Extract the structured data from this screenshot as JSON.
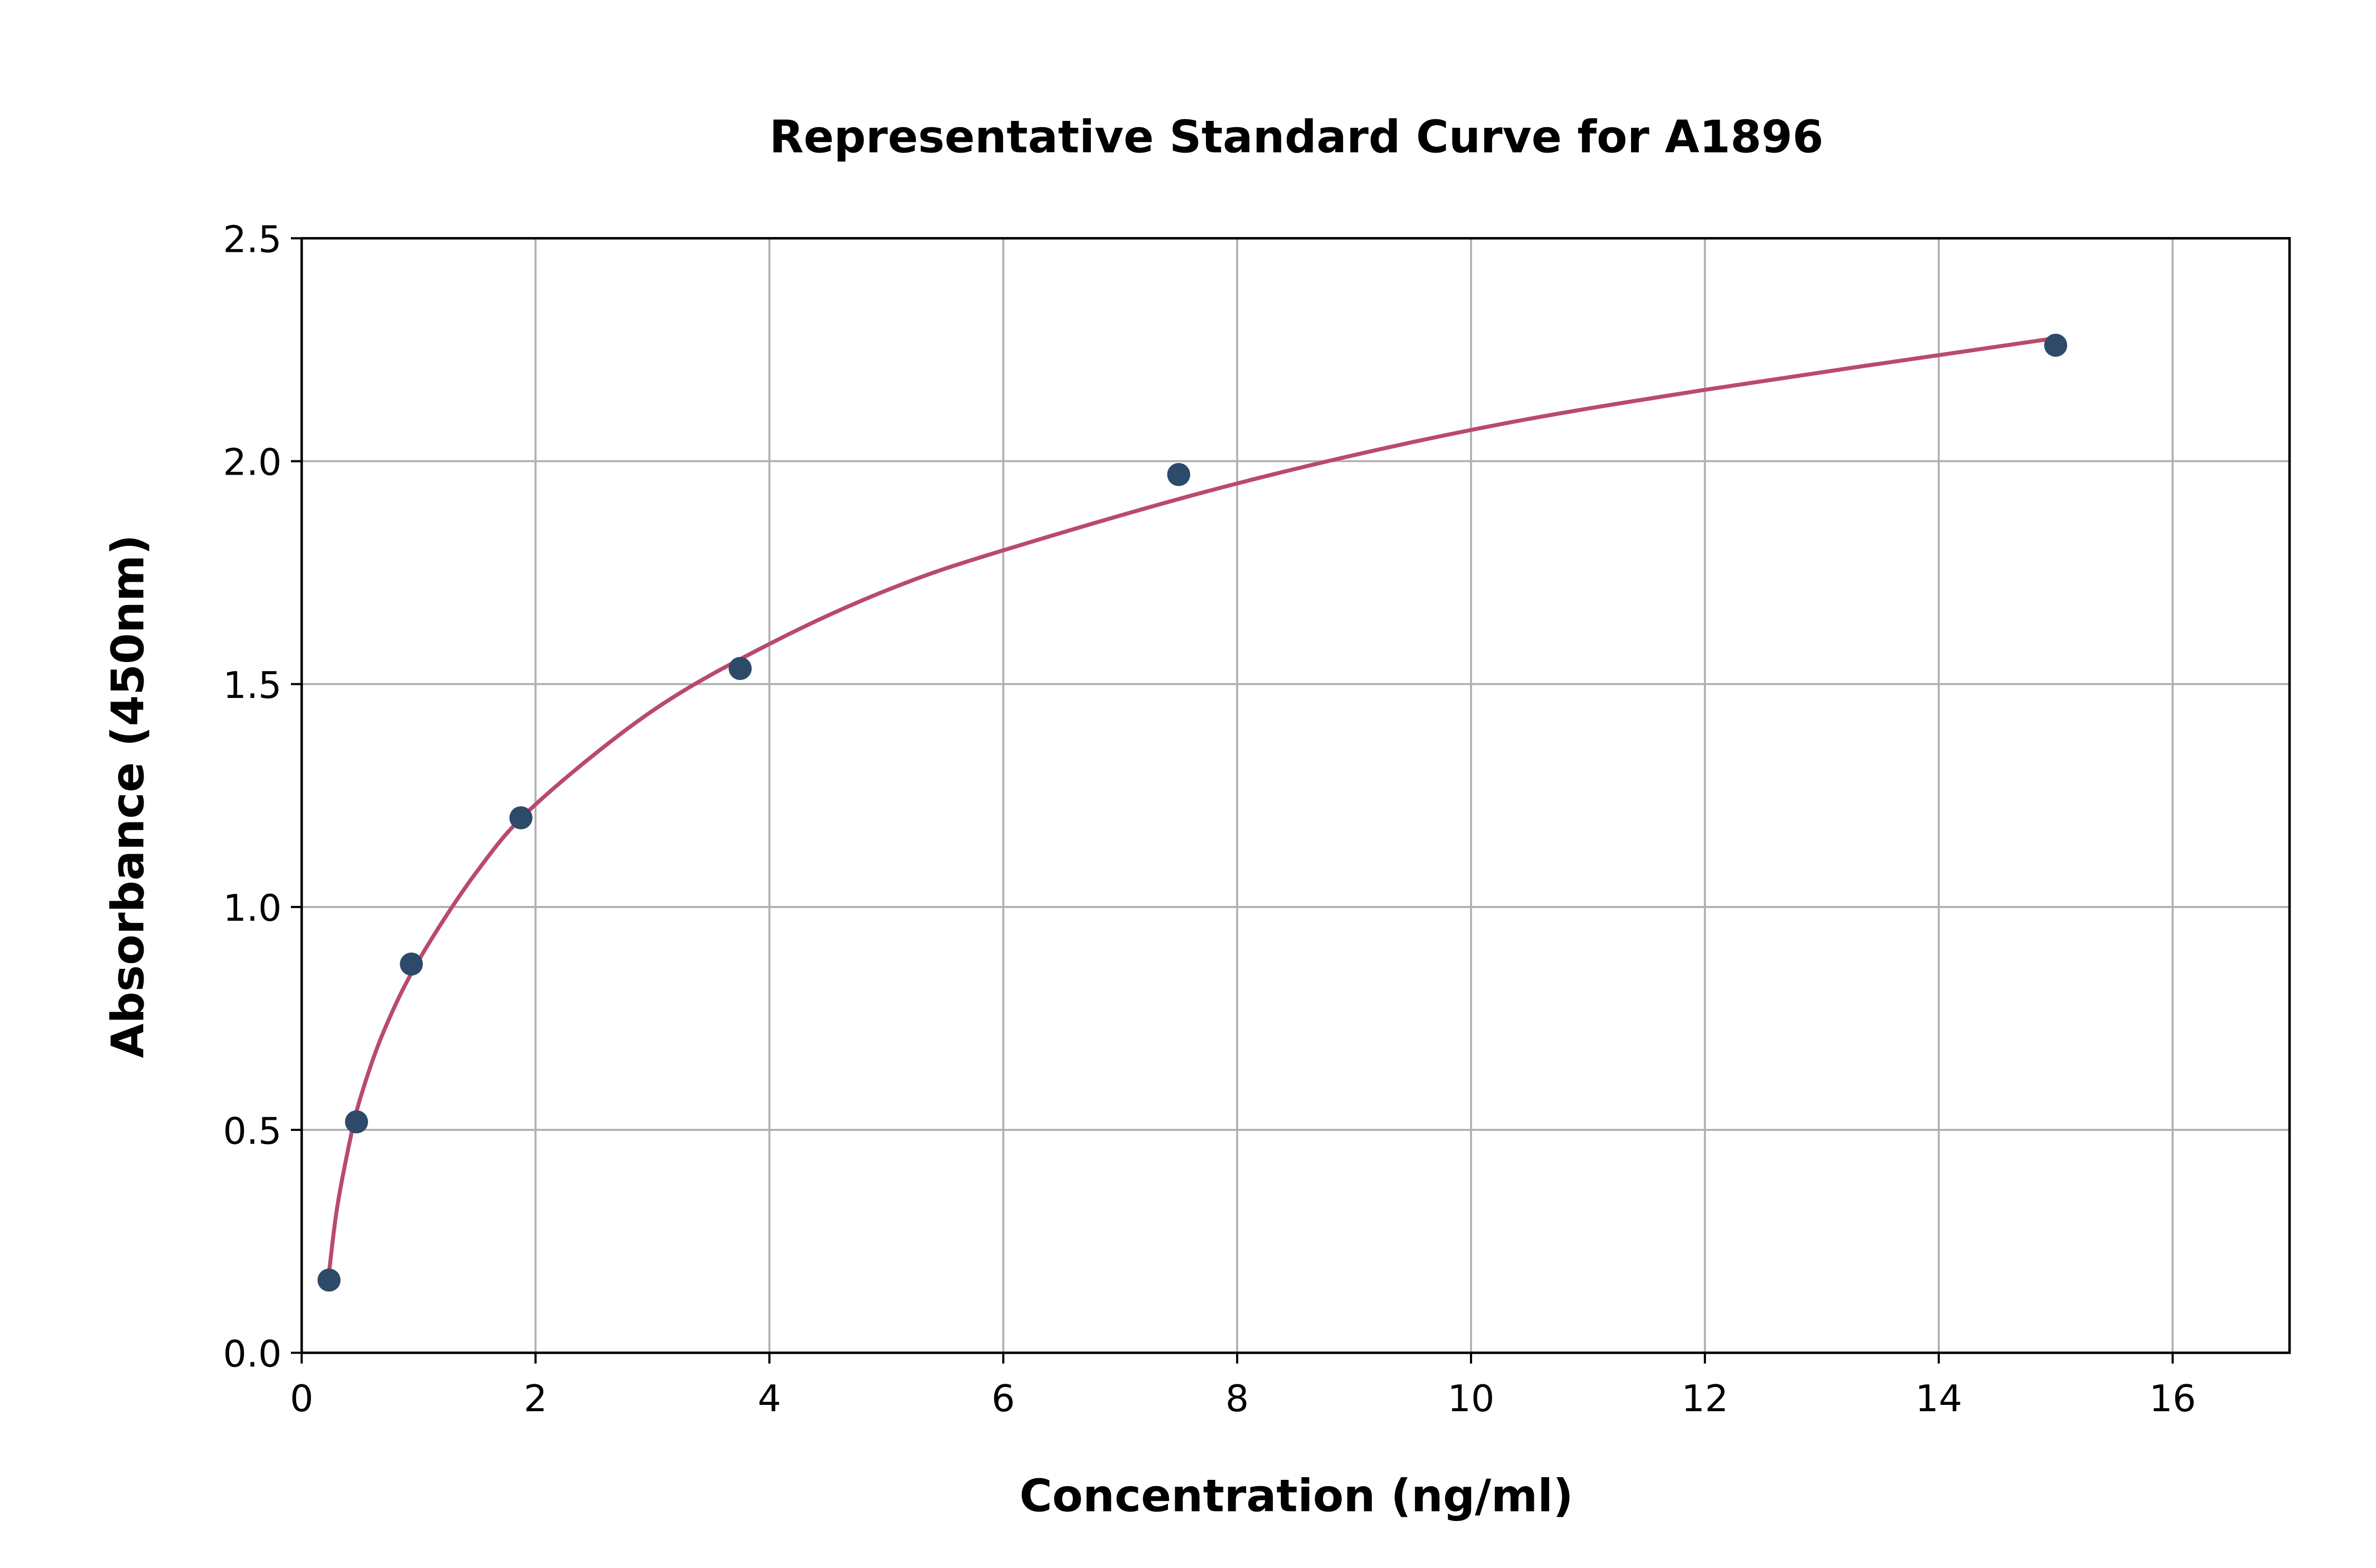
{
  "chart_data": {
    "type": "scatter",
    "title": "Representative Standard Curve for A1896",
    "xlabel": "Concentration (ng/ml)",
    "ylabel": "Absorbance (450nm)",
    "xlim": [
      0,
      17
    ],
    "ylim": [
      0,
      2.5
    ],
    "xticks": [
      0,
      2,
      4,
      6,
      8,
      10,
      12,
      14,
      16
    ],
    "xtick_labels": [
      "0",
      "2",
      "4",
      "6",
      "8",
      "10",
      "12",
      "14",
      "16"
    ],
    "yticks": [
      0,
      0.5,
      1.0,
      1.5,
      2.0,
      2.5
    ],
    "ytick_labels": [
      "0.0",
      "0.5",
      "1.0",
      "1.5",
      "2.0",
      "2.5"
    ],
    "grid": true,
    "series": [
      {
        "kind": "points",
        "color": "#2e4a6b",
        "x": [
          0.234,
          0.469,
          0.938,
          1.875,
          3.75,
          7.5,
          15
        ],
        "y": [
          0.163,
          0.518,
          0.872,
          1.2,
          1.535,
          1.97,
          2.26
        ]
      },
      {
        "kind": "fit-line",
        "color": "#b94a6e",
        "x": [
          0.234,
          0.3,
          0.4,
          0.5,
          0.7,
          1,
          1.5,
          2,
          3,
          4,
          5,
          6,
          8,
          10,
          12,
          15
        ],
        "y": [
          0.18,
          0.32,
          0.46,
          0.57,
          0.72,
          0.88,
          1.08,
          1.23,
          1.44,
          1.59,
          1.71,
          1.8,
          1.95,
          2.07,
          2.16,
          2.276
        ]
      }
    ]
  }
}
